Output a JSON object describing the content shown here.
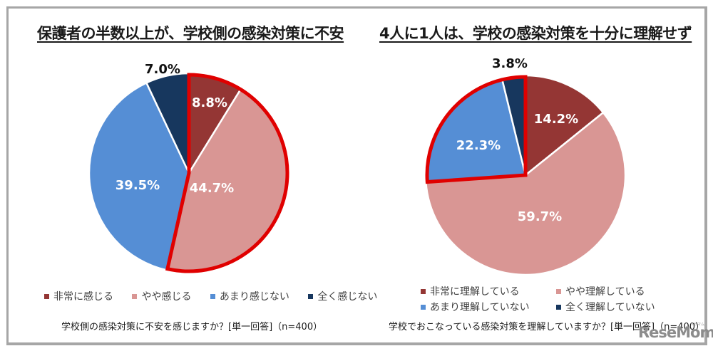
{
  "chart_data": [
    {
      "type": "pie",
      "title": "保護者の半数以上が、学校側の感染対策に不安",
      "categories": [
        "非常に感じる",
        "やや感じる",
        "あまり感じない",
        "全く感じない"
      ],
      "values": [
        8.8,
        44.7,
        39.5,
        7.0
      ],
      "labels": [
        "8.8%",
        "44.7%",
        "39.5%",
        "7.0%"
      ],
      "colors": [
        "#943634",
        "#D99694",
        "#558ED5",
        "#17375E"
      ],
      "highlighted_slices": [
        "非常に感じる",
        "やや感じる"
      ],
      "highlight_color": "#E00000",
      "legend_position": "bottom",
      "footnote": "学校側の感染対策に不安を感じますか？[単一回答]（n=400）"
    },
    {
      "type": "pie",
      "title": "4人に1人は、学校の感染対策を十分に理解せず",
      "categories": [
        "非常に理解している",
        "やや理解している",
        "あまり理解していない",
        "全く理解していない"
      ],
      "values": [
        14.2,
        59.7,
        22.3,
        3.8
      ],
      "labels": [
        "14.2%",
        "59.7%",
        "22.3%",
        "3.8%"
      ],
      "colors": [
        "#943634",
        "#D99694",
        "#558ED5",
        "#17375E"
      ],
      "highlighted_slices": [
        "あまり理解していない",
        "全く理解していない"
      ],
      "highlight_color": "#E00000",
      "legend_position": "bottom",
      "footnote": "学校でおこなっている感染対策を理解していますか？[単一回答]（n=400）"
    }
  ],
  "left": {
    "title": "保護者の半数以上が、学校側の感染対策に不安",
    "labels": {
      "s1": "8.8%",
      "s2": "44.7%",
      "s3": "39.5%",
      "s4": "7.0%"
    },
    "legend": [
      "非常に感じる",
      "やや感じる",
      "あまり感じない",
      "全く感じない"
    ],
    "question": "学校側の感染対策に不安を感じますか？[単一回答]（n=400）"
  },
  "right": {
    "title": "4人に1人は、学校の感染対策を十分に理解せず",
    "labels": {
      "s1": "14.2%",
      "s2": "59.7%",
      "s3": "22.3%",
      "s4": "3.8%"
    },
    "legend": [
      "非常に理解している",
      "やや理解している",
      "あまり理解していない",
      "全く理解していない"
    ],
    "question": "学校でおこなっている感染対策を理解していますか？[単一回答]（n=400）"
  },
  "colors": {
    "c1": "#943634",
    "c2": "#D99694",
    "c3": "#558ED5",
    "c4": "#17375E",
    "highlight": "#E00000"
  },
  "logo": {
    "text": "ReseMom.",
    "sub": "リセマム"
  }
}
